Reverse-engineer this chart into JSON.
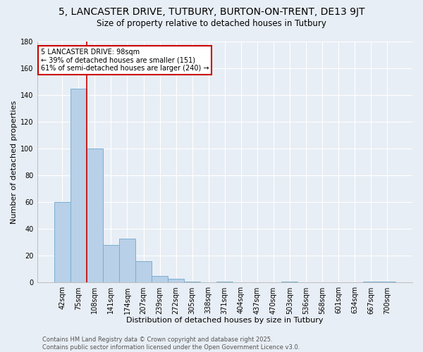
{
  "title": "5, LANCASTER DRIVE, TUTBURY, BURTON-ON-TRENT, DE13 9JT",
  "subtitle": "Size of property relative to detached houses in Tutbury",
  "xlabel": "Distribution of detached houses by size in Tutbury",
  "ylabel": "Number of detached properties",
  "bar_labels": [
    "42sqm",
    "75sqm",
    "108sqm",
    "141sqm",
    "174sqm",
    "207sqm",
    "239sqm",
    "272sqm",
    "305sqm",
    "338sqm",
    "371sqm",
    "404sqm",
    "437sqm",
    "470sqm",
    "503sqm",
    "536sqm",
    "568sqm",
    "601sqm",
    "634sqm",
    "667sqm",
    "700sqm"
  ],
  "bar_values": [
    60,
    145,
    100,
    28,
    33,
    16,
    5,
    3,
    1,
    0,
    1,
    0,
    0,
    0,
    1,
    0,
    0,
    0,
    0,
    1,
    1
  ],
  "bar_color": "#b8d0e8",
  "bar_edge_color": "#7aafd4",
  "ylim": [
    0,
    180
  ],
  "yticks": [
    0,
    20,
    40,
    60,
    80,
    100,
    120,
    140,
    160,
    180
  ],
  "annotation_line1": "5 LANCASTER DRIVE: 98sqm",
  "annotation_line2": "← 39% of detached houses are smaller (151)",
  "annotation_line3": "61% of semi-detached houses are larger (240) →",
  "annotation_box_color": "#ffffff",
  "annotation_box_edge_color": "#cc0000",
  "vline_color": "#cc0000",
  "vline_position": 1.5,
  "footer_line1": "Contains HM Land Registry data © Crown copyright and database right 2025.",
  "footer_line2": "Contains public sector information licensed under the Open Government Licence v3.0.",
  "bg_color": "#e8eef5",
  "plot_bg_color": "#e8eef5",
  "grid_color": "#ffffff",
  "title_fontsize": 10,
  "subtitle_fontsize": 8.5,
  "axis_label_fontsize": 8,
  "tick_fontsize": 7,
  "annotation_fontsize": 7,
  "footer_fontsize": 6
}
